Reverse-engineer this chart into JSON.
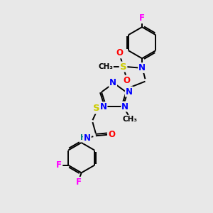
{
  "bg_color": "#e8e8e8",
  "atom_colors": {
    "C": "#000000",
    "N": "#0000ff",
    "O": "#ff0000",
    "S": "#cccc00",
    "F": "#ff00ff",
    "H": "#008080"
  },
  "bond_color": "#000000",
  "bond_width": 1.4,
  "font_size": 8.5
}
